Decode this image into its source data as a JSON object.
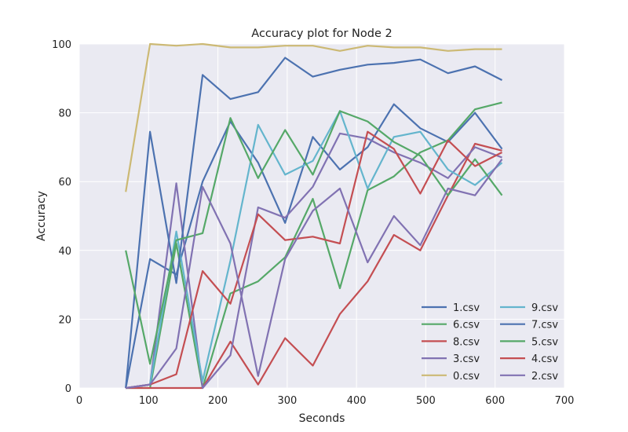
{
  "chart_data": {
    "type": "line",
    "title": "Accuracy plot for Node 2",
    "xlabel": "Seconds",
    "ylabel": "Accuracy",
    "xlim": [
      0,
      700
    ],
    "ylim": [
      0,
      100
    ],
    "xticks": [
      0,
      100,
      200,
      300,
      400,
      500,
      600,
      700
    ],
    "yticks": [
      0,
      20,
      40,
      60,
      80,
      100
    ],
    "grid": true,
    "legend_position": "lower-right",
    "legend_columns": 2,
    "x": [
      67,
      102,
      140,
      178,
      218,
      258,
      297,
      337,
      376,
      416,
      454,
      492,
      532,
      571,
      610
    ],
    "series": [
      {
        "name": "1.csv",
        "color": "#4C72B0",
        "values": [
          0,
          37.5,
          33,
          60,
          77.5,
          65.5,
          48,
          73,
          63.5,
          70,
          82.5,
          75.5,
          71.5,
          80,
          69.5
        ]
      },
      {
        "name": "6.csv",
        "color": "#55A868",
        "values": [
          0,
          0,
          42,
          0,
          27.5,
          31,
          38,
          55,
          29,
          57.5,
          61.5,
          68.5,
          72,
          81,
          83
        ]
      },
      {
        "name": "8.csv",
        "color": "#C44E52",
        "values": [
          0,
          0,
          0,
          0,
          13.5,
          1,
          14.5,
          6.5,
          21.5,
          31,
          44.5,
          40,
          56,
          71,
          69
        ]
      },
      {
        "name": "3.csv",
        "color": "#8172B2",
        "values": [
          0,
          1,
          59.5,
          0,
          9.5,
          52.5,
          49.5,
          58.5,
          74,
          72.5,
          68.5,
          65.5,
          61,
          70,
          67
        ]
      },
      {
        "name": "0.csv",
        "color": "#CCB974",
        "values": [
          57,
          100,
          99.5,
          100,
          99,
          99,
          99.5,
          99.5,
          98,
          99.5,
          99,
          99,
          98,
          98.5,
          98.5
        ]
      },
      {
        "name": "9.csv",
        "color": "#64B5CD",
        "values": [
          0,
          1,
          45.5,
          2,
          37,
          76.5,
          62,
          66,
          80.5,
          58,
          73,
          74.5,
          63.5,
          59,
          65.5
        ]
      },
      {
        "name": "7.csv",
        "color": "#4C72B0",
        "values": [
          0,
          74.5,
          30.5,
          91,
          84,
          86,
          96,
          90.5,
          92.5,
          94,
          94.5,
          95.5,
          91.5,
          93.5,
          89.5
        ]
      },
      {
        "name": "5.csv",
        "color": "#55A868",
        "values": [
          40,
          7,
          43,
          45,
          78.5,
          61,
          75,
          62,
          80.5,
          77.5,
          71.5,
          67.5,
          56,
          66.5,
          56
        ]
      },
      {
        "name": "4.csv",
        "color": "#C44E52",
        "values": [
          0,
          1,
          4,
          34,
          24.5,
          50.5,
          43,
          44,
          42,
          74.5,
          69.5,
          56.5,
          72,
          64.5,
          68.5
        ]
      },
      {
        "name": "2.csv",
        "color": "#8172B2",
        "values": [
          0,
          1,
          11.5,
          58.5,
          42,
          3.5,
          37.5,
          51.5,
          58,
          36.5,
          50,
          41.5,
          58,
          56,
          66.5
        ]
      }
    ]
  }
}
